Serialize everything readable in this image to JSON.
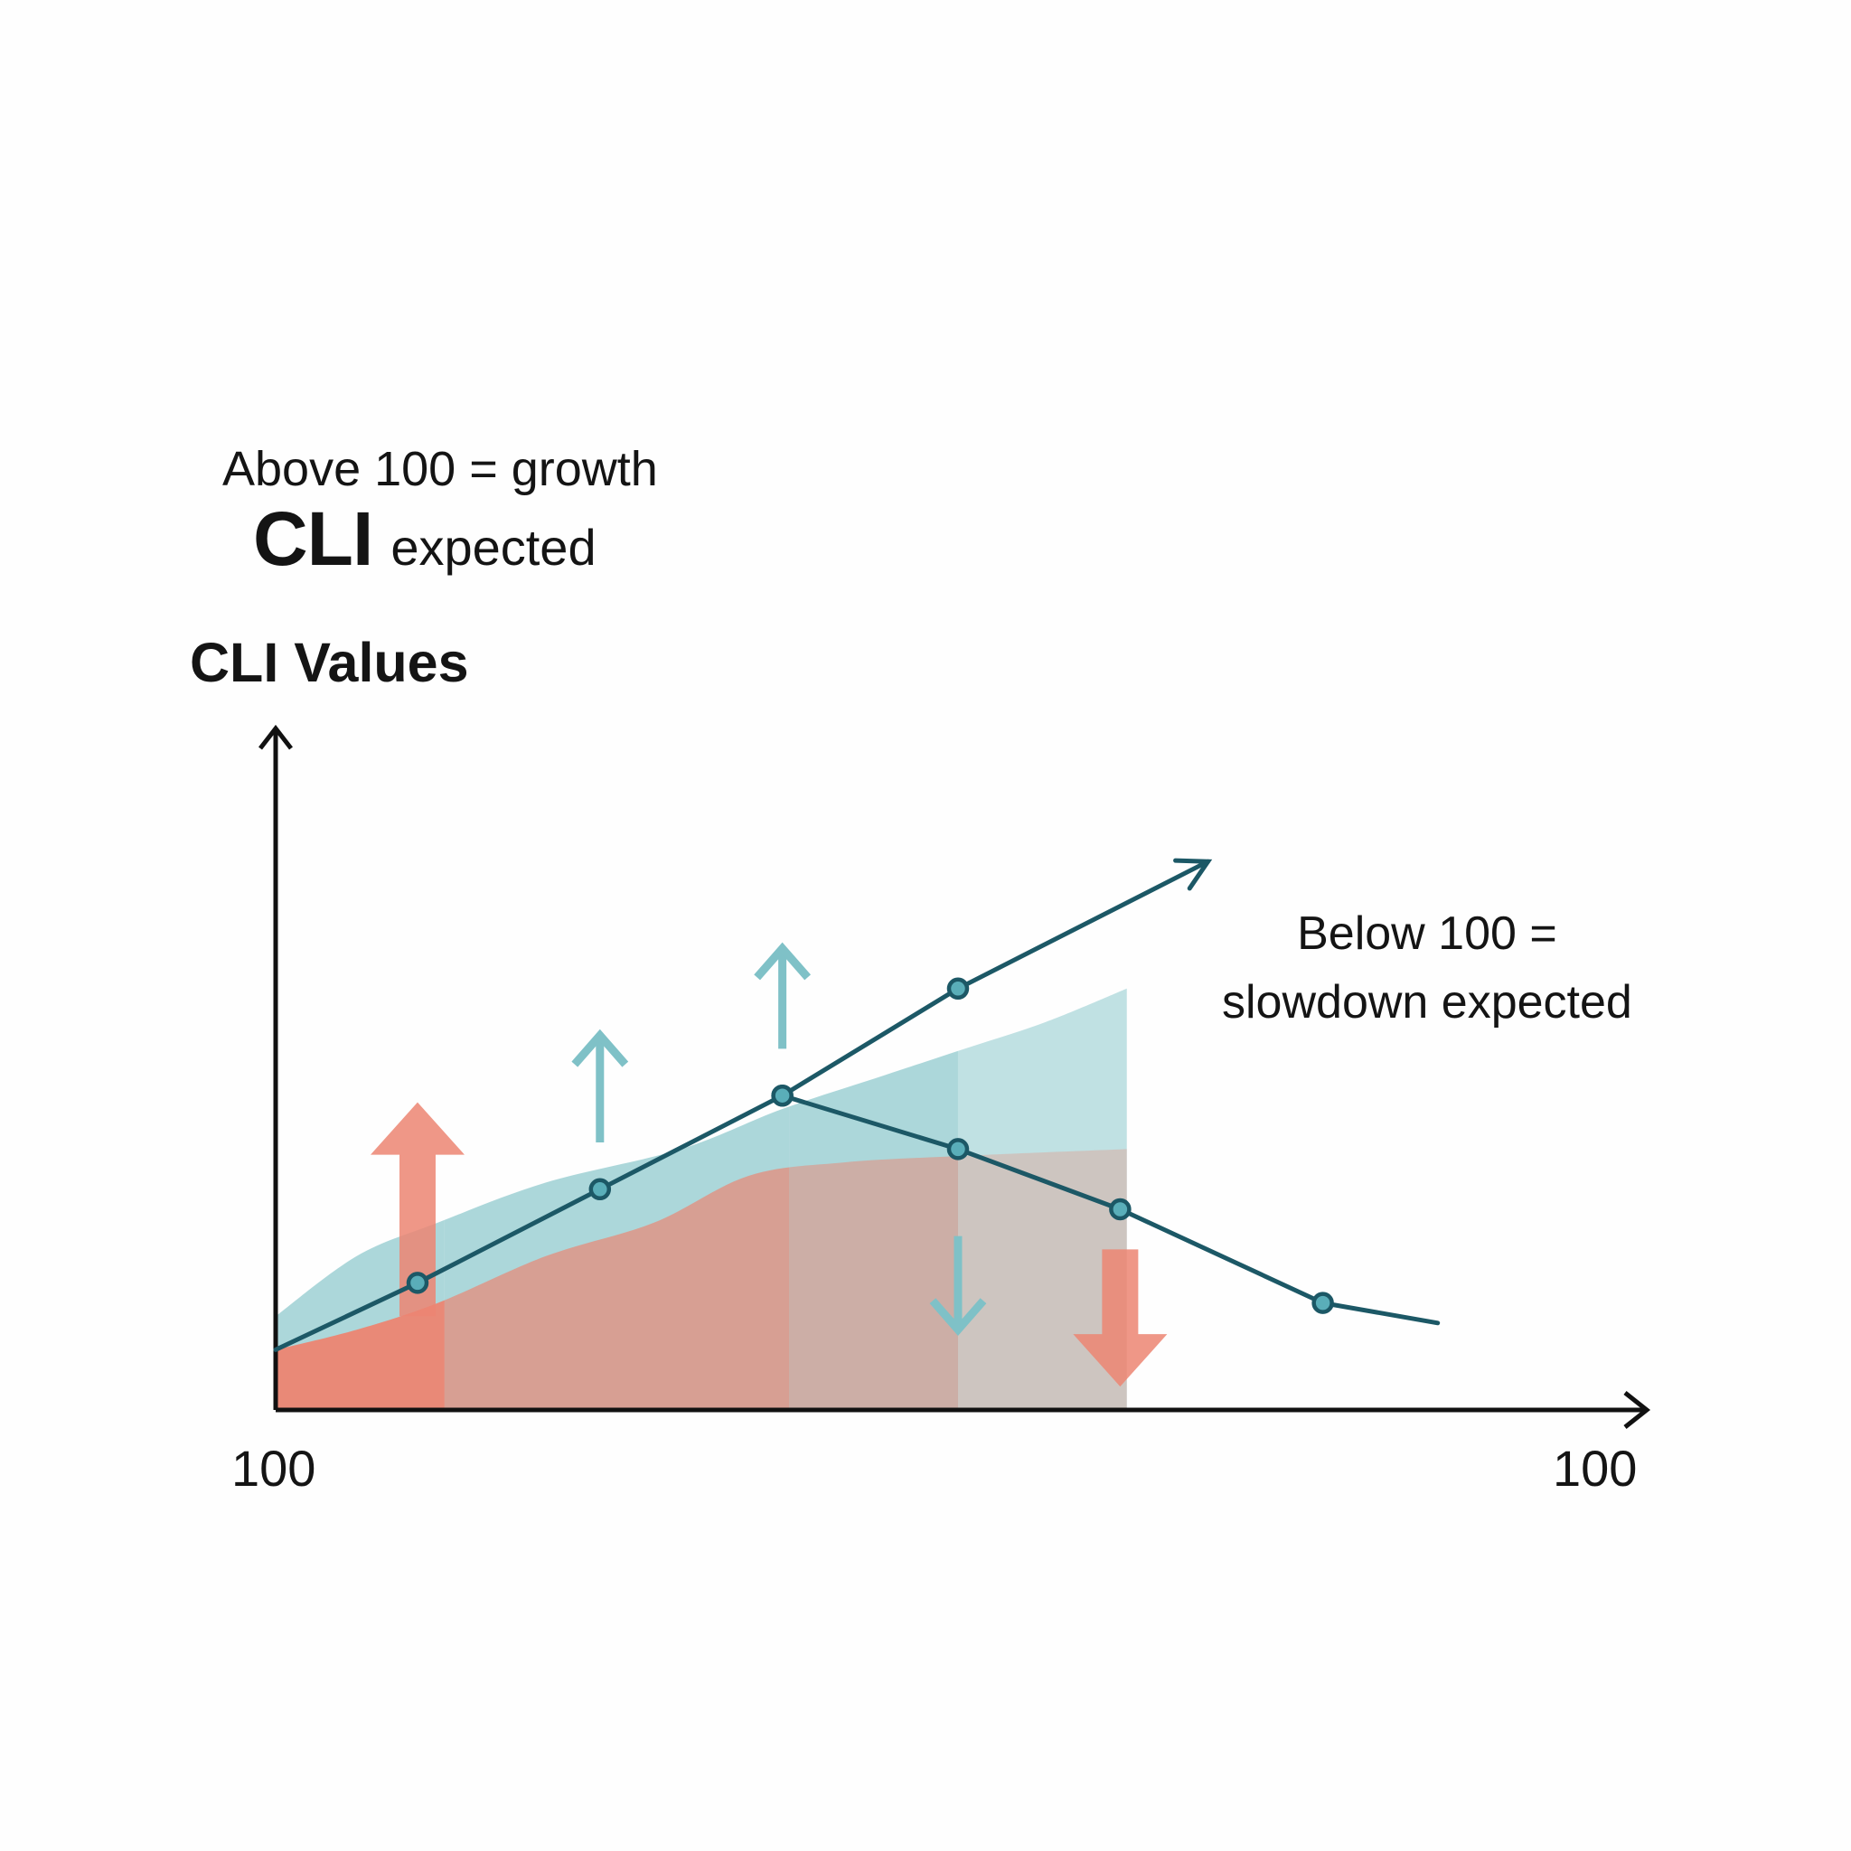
{
  "header": {
    "growth_line": "Above 100 = growth",
    "cli_word": "CLI",
    "cli_suffix": "expected"
  },
  "annotation": {
    "line1": "Below 100 =",
    "line2": "slowdown expected"
  },
  "colors": {
    "line": "#1c5866",
    "marker_fill": "#5aaeb9",
    "teal_band": "#8cc8cc",
    "salmon": "#ec8572",
    "teal_arrow": "#7fc1c7",
    "axis": "#111111",
    "text": "#141414"
  },
  "chart_data": {
    "type": "line",
    "title": "",
    "ylabel": "CLI Values",
    "xlabel": "",
    "x_tick_labels": [
      "100",
      "100"
    ],
    "xlim": [
      0,
      10
    ],
    "ylim": [
      0,
      10
    ],
    "grid": false,
    "series": [
      {
        "name": "CLI line (growth path)",
        "x": [
          0,
          1.05,
          2.4,
          3.75,
          5.05,
          6.9
        ],
        "y": [
          0.9,
          1.9,
          3.3,
          4.7,
          6.3,
          8.2
        ],
        "markers": [
          false,
          true,
          true,
          true,
          true,
          false
        ],
        "ends_with_arrow": true
      },
      {
        "name": "CLI line (slowdown path)",
        "x": [
          3.75,
          5.05,
          6.25,
          7.75,
          8.6
        ],
        "y": [
          4.7,
          3.9,
          3.0,
          1.6,
          1.3
        ],
        "markers": [
          true,
          true,
          true,
          true,
          false
        ],
        "ends_with_arrow": false
      }
    ],
    "areas": [
      {
        "name": "teal band",
        "x": [
          0,
          0.6,
          1.2,
          2,
          3,
          3.75,
          4.5,
          5.1,
          5.7,
          6.3
        ],
        "y": [
          1.4,
          2.3,
          2.8,
          3.4,
          3.9,
          4.5,
          5.0,
          5.4,
          5.8,
          6.3
        ]
      },
      {
        "name": "salmon band",
        "x": [
          0,
          0.6,
          1.2,
          2,
          2.8,
          3.5,
          4.2,
          5.1,
          6.3
        ],
        "y": [
          0.9,
          1.2,
          1.6,
          2.3,
          2.8,
          3.5,
          3.7,
          3.8,
          3.9
        ]
      }
    ],
    "shade_boundaries": [
      0,
      1.25,
      3.8,
      5.05,
      6.3
    ],
    "indicator_arrows": [
      {
        "direction": "up",
        "style": "block-salmon",
        "x": 1.05,
        "y_from": 1.4,
        "y_to": 4.6
      },
      {
        "direction": "up",
        "style": "outline-teal",
        "x": 2.4,
        "y_from": 4.0,
        "y_to": 5.6
      },
      {
        "direction": "up",
        "style": "outline-teal",
        "x": 3.75,
        "y_from": 5.4,
        "y_to": 6.9
      },
      {
        "direction": "down",
        "style": "outline-teal",
        "x": 5.05,
        "y_from": 2.6,
        "y_to": 1.2
      },
      {
        "direction": "down",
        "style": "block-salmon",
        "x": 6.25,
        "y_from": 2.4,
        "y_to": 0.35
      }
    ]
  }
}
